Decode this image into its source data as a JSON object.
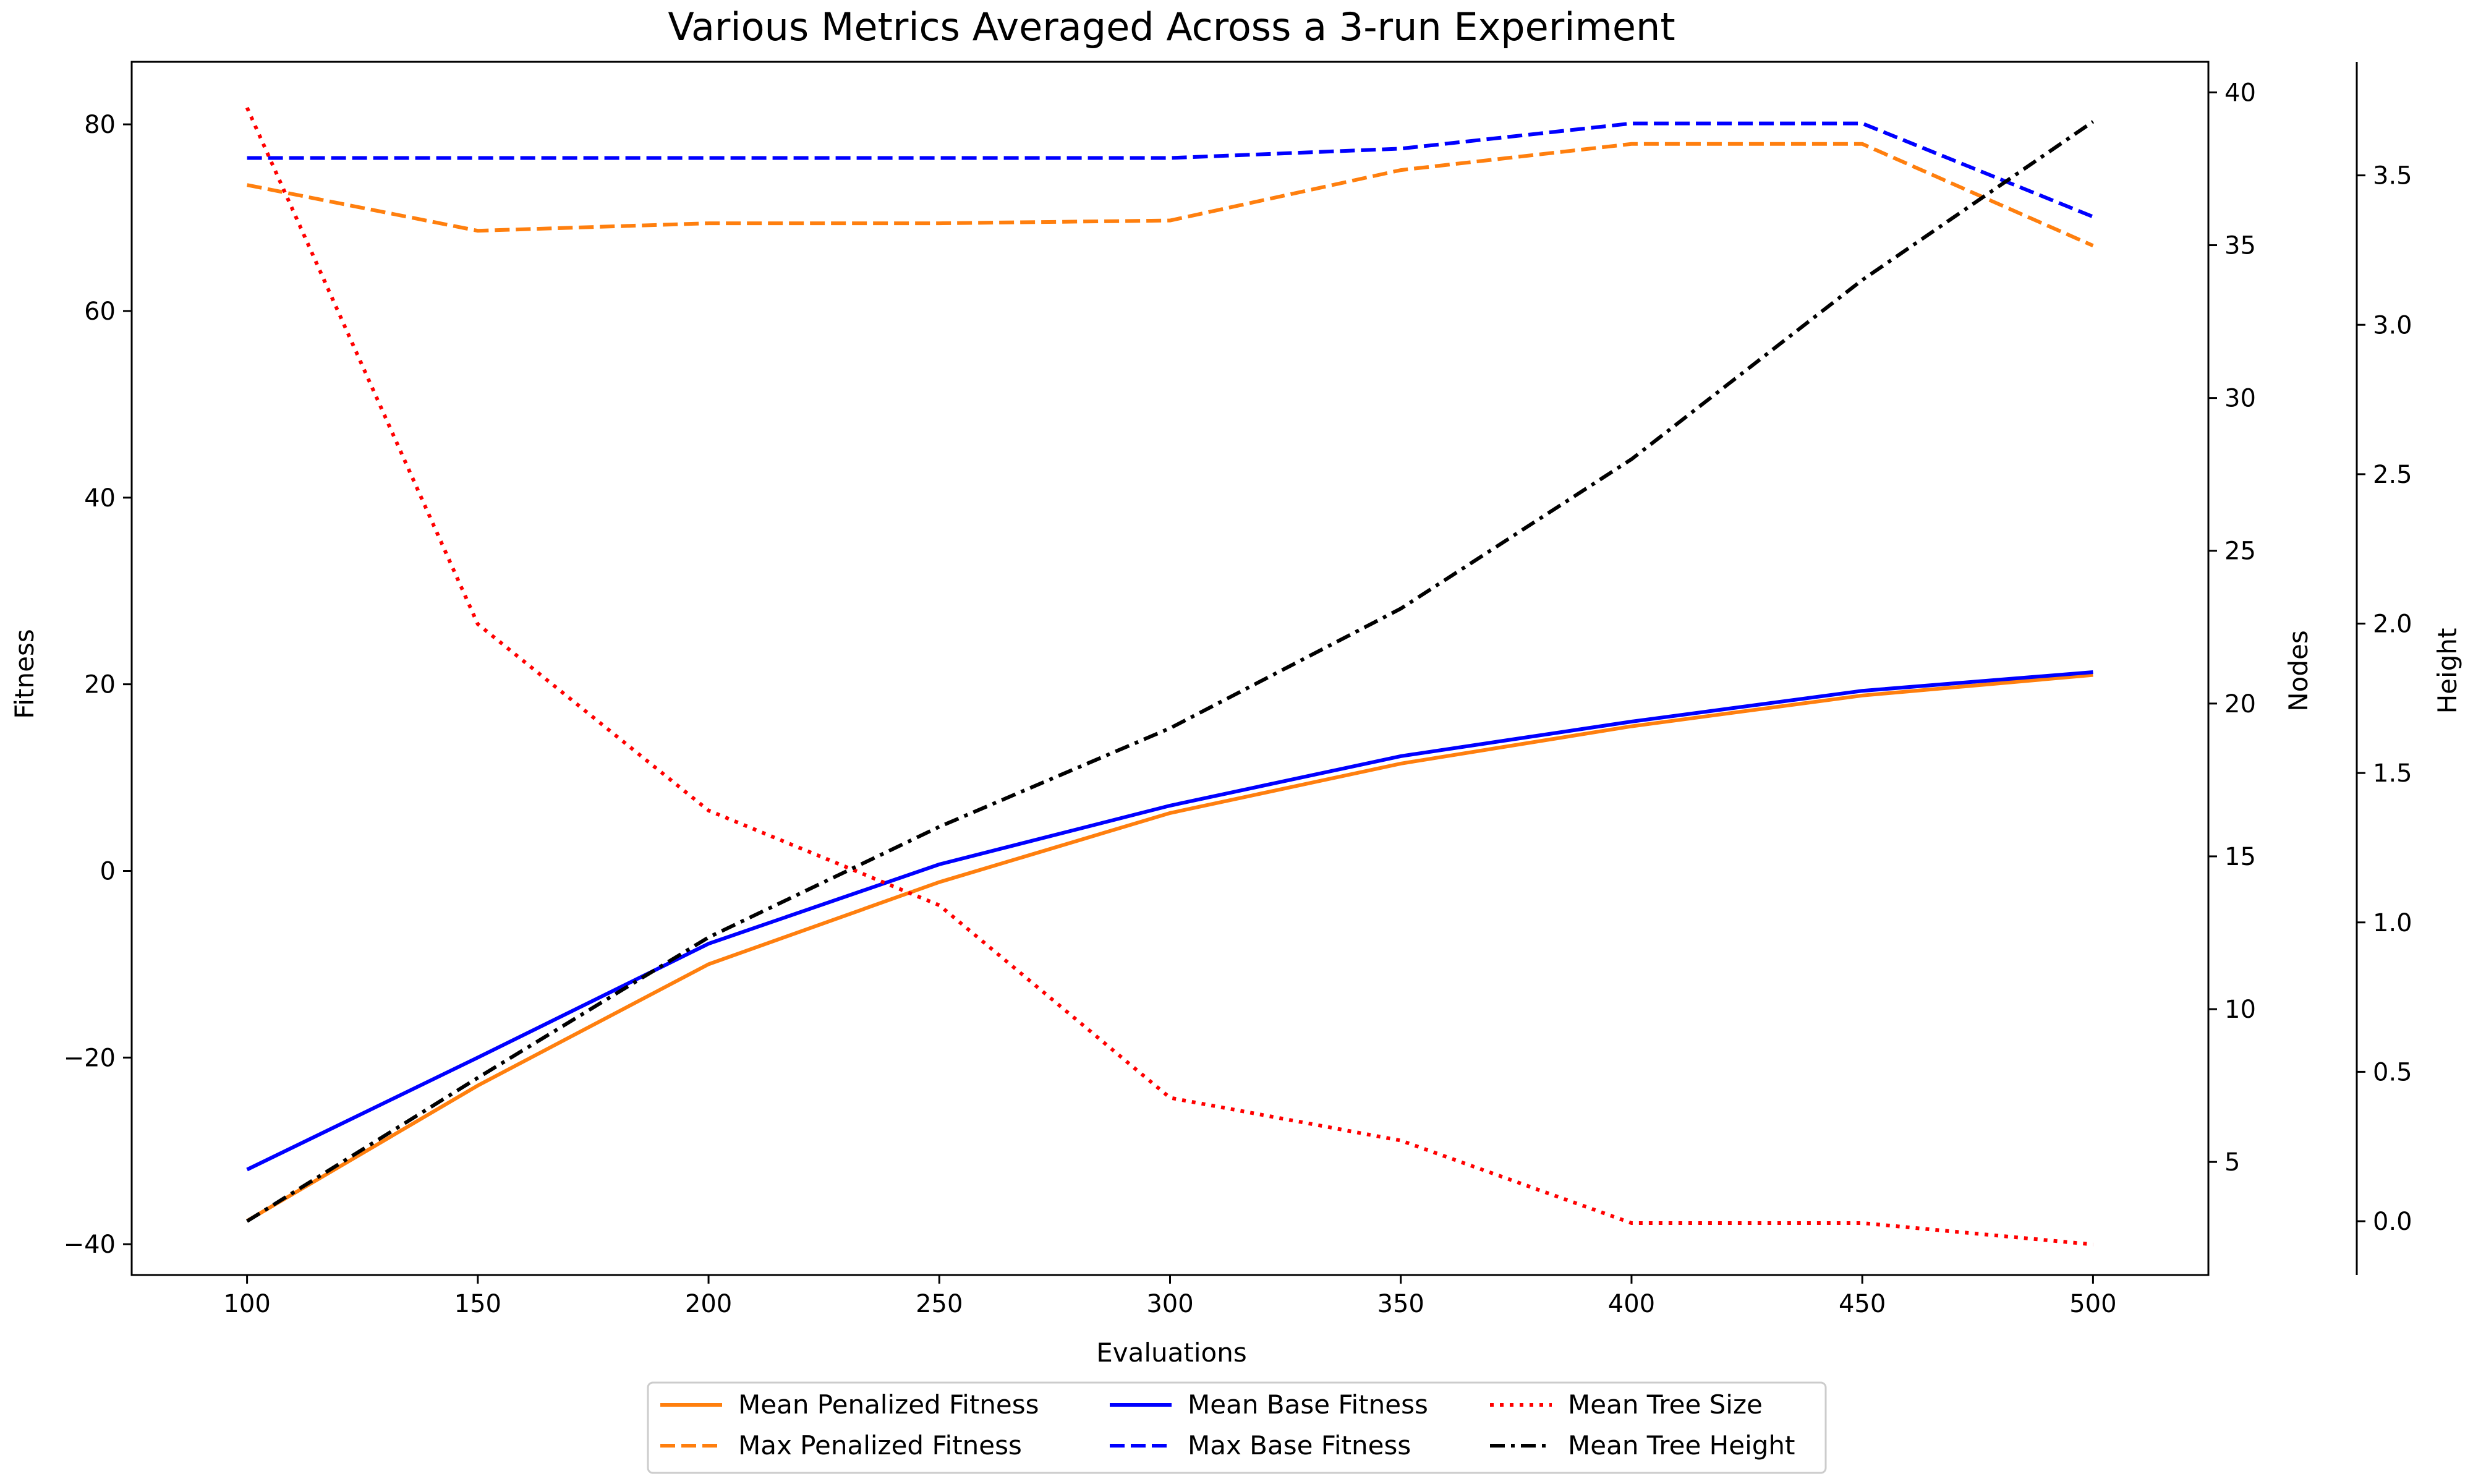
{
  "chart_data": {
    "type": "line",
    "title": "Various Metrics Averaged Across a 3-run Experiment",
    "xlabel": "Evaluations",
    "x": [
      100,
      150,
      200,
      250,
      300,
      350,
      400,
      450,
      500
    ],
    "xlim": [
      75,
      525
    ],
    "xticks": [
      100,
      150,
      200,
      250,
      300,
      350,
      400,
      450,
      500
    ],
    "axes": {
      "fitness": {
        "label": "Fitness",
        "position": "left",
        "ylim": [
          -43.3,
          86.7
        ],
        "ticks": [
          -40,
          -20,
          0,
          20,
          40,
          60,
          80
        ]
      },
      "nodes": {
        "label": "Nodes",
        "position": "right",
        "ylim": [
          1.3,
          41.0
        ],
        "ticks": [
          5,
          10,
          15,
          20,
          25,
          30,
          35,
          40
        ]
      },
      "height": {
        "label": "Height",
        "position": "right-offset",
        "ylim": [
          -0.18,
          3.88
        ],
        "ticks": [
          0.0,
          0.5,
          1.0,
          1.5,
          2.0,
          2.5,
          3.0,
          3.5
        ]
      }
    },
    "series": [
      {
        "name": "Mean Penalized Fitness",
        "axis": "fitness",
        "color": "#ff7f0e",
        "style": "solid",
        "values": [
          -37.5,
          -23.0,
          -10.0,
          -1.2,
          6.2,
          11.5,
          15.5,
          18.8,
          21.0
        ]
      },
      {
        "name": "Max Penalized Fitness",
        "axis": "fitness",
        "color": "#ff7f0e",
        "style": "dashed",
        "values": [
          73.5,
          68.6,
          69.4,
          69.4,
          69.7,
          75.1,
          77.9,
          77.9,
          67.0
        ]
      },
      {
        "name": "Mean Base Fitness",
        "axis": "fitness",
        "color": "#0000ff",
        "style": "solid",
        "values": [
          -32.0,
          -20.0,
          -7.8,
          0.7,
          7.0,
          12.3,
          16.0,
          19.3,
          21.3
        ]
      },
      {
        "name": "Max Base Fitness",
        "axis": "fitness",
        "color": "#0000ff",
        "style": "dashed",
        "values": [
          76.4,
          76.4,
          76.4,
          76.4,
          76.4,
          77.4,
          80.1,
          80.1,
          70.1
        ]
      },
      {
        "name": "Mean Tree Size",
        "axis": "nodes",
        "color": "#ff0000",
        "style": "dotted",
        "values": [
          39.5,
          22.6,
          16.5,
          13.4,
          7.1,
          5.7,
          3.0,
          3.0,
          2.3
        ]
      },
      {
        "name": "Mean Tree Height",
        "axis": "height",
        "color": "#000000",
        "style": "dashdot",
        "values": [
          0.0,
          0.48,
          0.95,
          1.32,
          1.65,
          2.05,
          2.55,
          3.15,
          3.68
        ]
      }
    ],
    "legend": {
      "placement": "bottom-center",
      "columns": 3
    },
    "grid": false
  }
}
